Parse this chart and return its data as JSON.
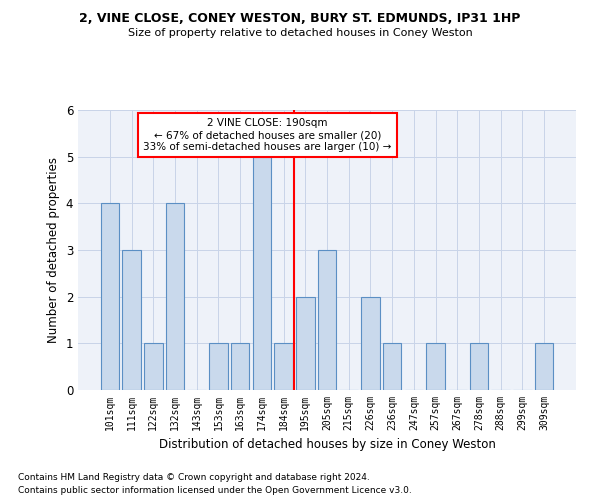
{
  "title": "2, VINE CLOSE, CONEY WESTON, BURY ST. EDMUNDS, IP31 1HP",
  "subtitle": "Size of property relative to detached houses in Coney Weston",
  "xlabel": "Distribution of detached houses by size in Coney Weston",
  "ylabel": "Number of detached properties",
  "footnote1": "Contains HM Land Registry data © Crown copyright and database right 2024.",
  "footnote2": "Contains public sector information licensed under the Open Government Licence v3.0.",
  "categories": [
    "101sqm",
    "111sqm",
    "122sqm",
    "132sqm",
    "143sqm",
    "153sqm",
    "163sqm",
    "174sqm",
    "184sqm",
    "195sqm",
    "205sqm",
    "215sqm",
    "226sqm",
    "236sqm",
    "247sqm",
    "257sqm",
    "267sqm",
    "278sqm",
    "288sqm",
    "299sqm",
    "309sqm"
  ],
  "values": [
    4,
    3,
    1,
    4,
    0,
    1,
    1,
    5,
    1,
    2,
    3,
    0,
    2,
    1,
    0,
    1,
    0,
    1,
    0,
    0,
    1
  ],
  "bar_color": "#c9d9ec",
  "bar_edgecolor": "#5b8fc4",
  "ylim": [
    0,
    6
  ],
  "yticks": [
    0,
    1,
    2,
    3,
    4,
    5,
    6
  ],
  "red_line_x": 8.5,
  "annotation_title": "2 VINE CLOSE: 190sqm",
  "annotation_line1": "← 67% of detached houses are smaller (20)",
  "annotation_line2": "33% of semi-detached houses are larger (10) →",
  "background_color": "#eef2f9"
}
